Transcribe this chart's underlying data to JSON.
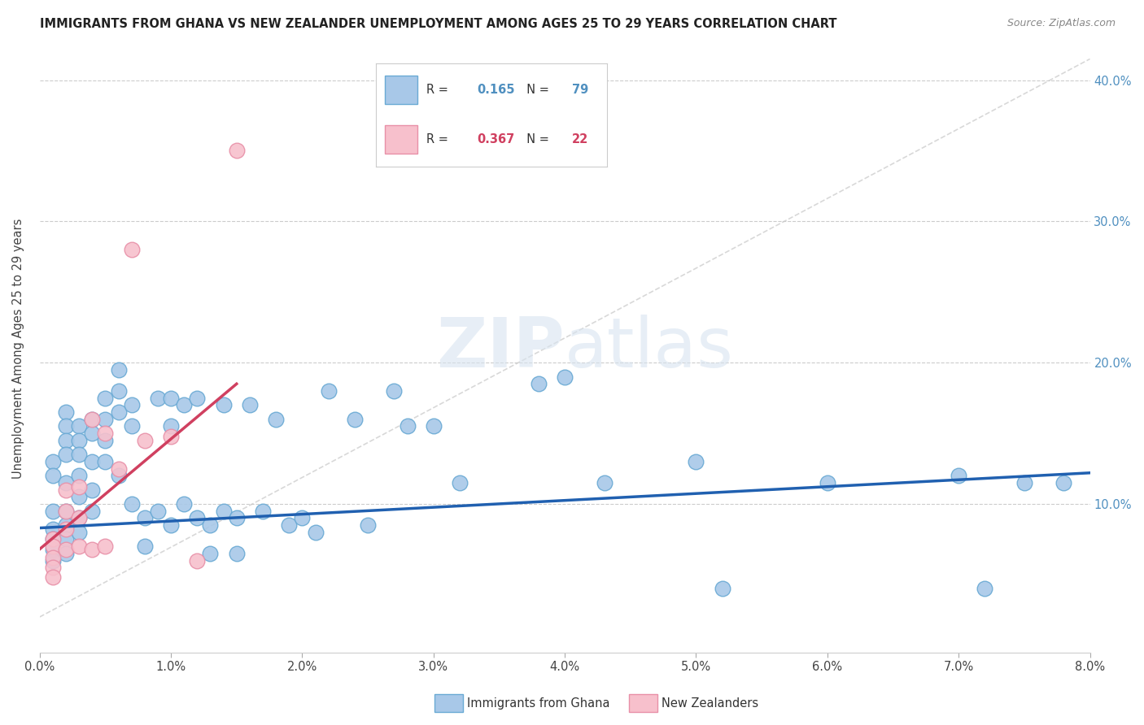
{
  "title": "IMMIGRANTS FROM GHANA VS NEW ZEALANDER UNEMPLOYMENT AMONG AGES 25 TO 29 YEARS CORRELATION CHART",
  "source": "Source: ZipAtlas.com",
  "ylabel": "Unemployment Among Ages 25 to 29 years",
  "legend1_label": "Immigrants from Ghana",
  "legend2_label": "New Zealanders",
  "R1": "0.165",
  "N1": "79",
  "R2": "0.367",
  "N2": "22",
  "color_blue": "#a8c8e8",
  "color_blue_edge": "#6aaad4",
  "color_pink": "#f7c0cc",
  "color_pink_edge": "#e890a8",
  "color_trendline_blue": "#2060b0",
  "color_trendline_pink": "#d04060",
  "color_diag": "#c8c8c8",
  "watermark_color": "#d8e4f0",
  "right_ytick_labels": [
    "",
    "10.0%",
    "20.0%",
    "30.0%",
    "40.0%"
  ],
  "xlim": [
    0.0,
    0.08
  ],
  "ylim": [
    -0.005,
    0.425
  ],
  "blue_x": [
    0.001,
    0.001,
    0.001,
    0.001,
    0.001,
    0.001,
    0.001,
    0.002,
    0.002,
    0.002,
    0.002,
    0.002,
    0.002,
    0.002,
    0.002,
    0.002,
    0.003,
    0.003,
    0.003,
    0.003,
    0.003,
    0.003,
    0.003,
    0.004,
    0.004,
    0.004,
    0.004,
    0.004,
    0.005,
    0.005,
    0.005,
    0.005,
    0.006,
    0.006,
    0.006,
    0.006,
    0.007,
    0.007,
    0.007,
    0.008,
    0.008,
    0.009,
    0.009,
    0.01,
    0.01,
    0.01,
    0.011,
    0.011,
    0.012,
    0.012,
    0.013,
    0.013,
    0.014,
    0.014,
    0.015,
    0.015,
    0.016,
    0.017,
    0.018,
    0.019,
    0.02,
    0.021,
    0.022,
    0.024,
    0.025,
    0.027,
    0.028,
    0.03,
    0.032,
    0.038,
    0.04,
    0.043,
    0.05,
    0.052,
    0.06,
    0.07,
    0.072,
    0.075,
    0.078
  ],
  "blue_y": [
    0.13,
    0.12,
    0.095,
    0.082,
    0.075,
    0.068,
    0.06,
    0.165,
    0.155,
    0.145,
    0.135,
    0.115,
    0.095,
    0.085,
    0.075,
    0.065,
    0.155,
    0.145,
    0.135,
    0.12,
    0.105,
    0.09,
    0.08,
    0.16,
    0.15,
    0.13,
    0.11,
    0.095,
    0.175,
    0.16,
    0.145,
    0.13,
    0.195,
    0.18,
    0.165,
    0.12,
    0.17,
    0.155,
    0.1,
    0.09,
    0.07,
    0.175,
    0.095,
    0.175,
    0.155,
    0.085,
    0.17,
    0.1,
    0.175,
    0.09,
    0.085,
    0.065,
    0.17,
    0.095,
    0.09,
    0.065,
    0.17,
    0.095,
    0.16,
    0.085,
    0.09,
    0.08,
    0.18,
    0.16,
    0.085,
    0.18,
    0.155,
    0.155,
    0.115,
    0.185,
    0.19,
    0.115,
    0.13,
    0.04,
    0.115,
    0.12,
    0.04,
    0.115,
    0.115
  ],
  "pink_x": [
    0.001,
    0.001,
    0.001,
    0.001,
    0.001,
    0.002,
    0.002,
    0.002,
    0.002,
    0.003,
    0.003,
    0.003,
    0.004,
    0.004,
    0.005,
    0.005,
    0.006,
    0.007,
    0.008,
    0.01,
    0.012,
    0.015
  ],
  "pink_y": [
    0.075,
    0.07,
    0.062,
    0.055,
    0.048,
    0.11,
    0.095,
    0.082,
    0.068,
    0.112,
    0.09,
    0.07,
    0.16,
    0.068,
    0.15,
    0.07,
    0.125,
    0.28,
    0.145,
    0.148,
    0.06,
    0.35
  ]
}
